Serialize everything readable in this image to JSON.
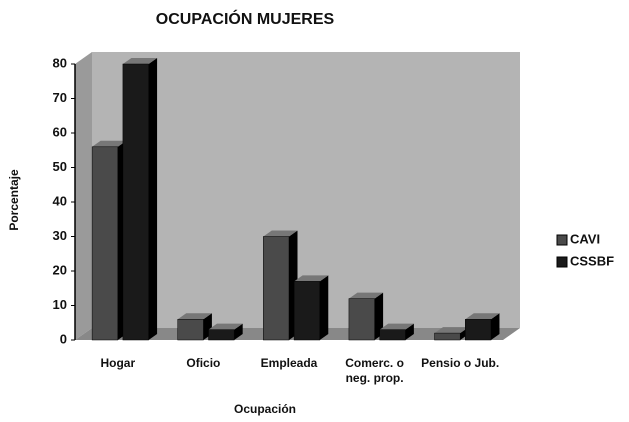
{
  "chart_data": {
    "type": "bar",
    "title": "OCUPACIÓN MUJERES",
    "x_label": "Ocupación",
    "y_label": "Porcentaje",
    "categories": [
      "Hogar",
      "Oficio",
      "Empleada",
      "Comerc. o neg. prop.",
      "Pensio o Jub."
    ],
    "series": [
      {
        "name": "CAVI",
        "color": "#4a4a4a",
        "values": [
          56,
          6,
          30,
          12,
          2
        ]
      },
      {
        "name": "CSSBF",
        "color": "#1a1a1a",
        "values": [
          80,
          3,
          17,
          3,
          6
        ]
      }
    ],
    "ylim": [
      0,
      80
    ],
    "yticks": [
      0,
      10,
      20,
      30,
      40,
      50,
      60,
      70,
      80
    ],
    "grid": false,
    "legend": "right"
  }
}
